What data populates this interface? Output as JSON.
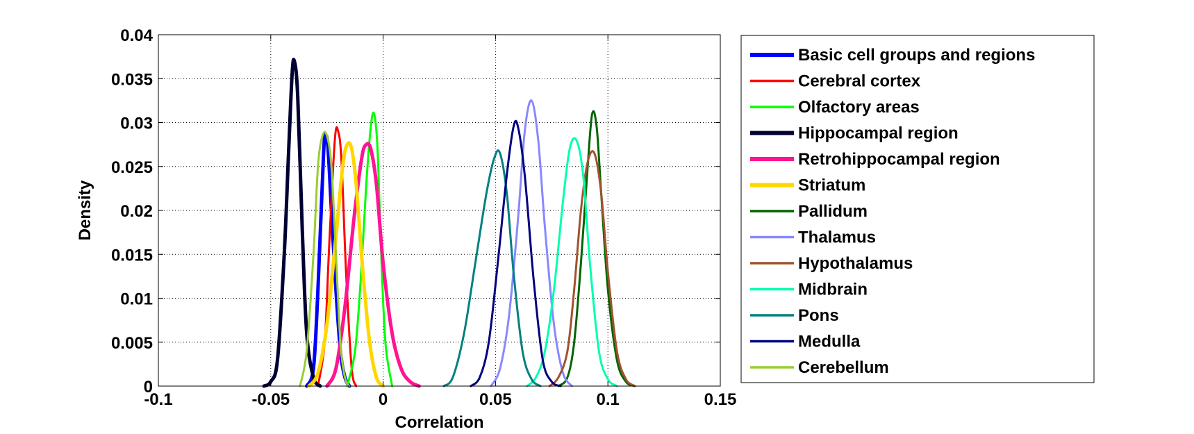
{
  "chart_data": {
    "type": "line",
    "xlabel": "Correlation",
    "ylabel": "Density",
    "xlim": [
      -0.1,
      0.15
    ],
    "ylim": [
      0,
      0.04
    ],
    "x_ticks": [
      -0.1,
      -0.05,
      0,
      0.05,
      0.1,
      0.15
    ],
    "x_tick_labels": [
      "-0.1",
      "-0.05",
      "0",
      "0.05",
      "0.1",
      "0.15"
    ],
    "y_ticks": [
      0,
      0.005,
      0.01,
      0.015,
      0.02,
      0.025,
      0.03,
      0.035,
      0.04
    ],
    "y_tick_labels": [
      "0",
      "0.005",
      "0.01",
      "0.015",
      "0.02",
      "0.025",
      "0.03",
      "0.035",
      "0.04"
    ],
    "grid": true,
    "legend_position": "outside-right",
    "series": [
      {
        "name": "Basic cell groups and regions",
        "color": "#0000FF",
        "bold": true,
        "x": [
          -0.034,
          -0.031,
          -0.029,
          -0.0265,
          -0.0255,
          -0.0245,
          -0.023,
          -0.021,
          -0.019,
          -0.017,
          -0.015
        ],
        "y": [
          0,
          0.002,
          0.011,
          0.0265,
          0.0285,
          0.027,
          0.02,
          0.011,
          0.004,
          0.001,
          0
        ]
      },
      {
        "name": "Cerebral cortex",
        "color": "#FF0000",
        "bold": false,
        "x": [
          -0.029,
          -0.026,
          -0.024,
          -0.0215,
          -0.02,
          -0.0185,
          -0.0165,
          -0.014,
          -0.012
        ],
        "y": [
          0,
          0.005,
          0.016,
          0.028,
          0.029,
          0.0255,
          0.013,
          0.002,
          0
        ]
      },
      {
        "name": "Olfactory areas",
        "color": "#00FF00",
        "bold": false,
        "x": [
          -0.016,
          -0.0125,
          -0.01,
          -0.0075,
          -0.0055,
          -0.004,
          -0.0025,
          -0.001,
          0.001,
          0.004
        ],
        "y": [
          0,
          0.004,
          0.012,
          0.023,
          0.0295,
          0.031,
          0.027,
          0.016,
          0.005,
          0
        ]
      },
      {
        "name": "Hippocampal region",
        "color": "#000033",
        "bold": true,
        "x": [
          -0.053,
          -0.05,
          -0.047,
          -0.044,
          -0.042,
          -0.0405,
          -0.0395,
          -0.038,
          -0.036,
          -0.034,
          -0.031,
          -0.028
        ],
        "y": [
          0,
          0.0005,
          0.003,
          0.015,
          0.027,
          0.0355,
          0.037,
          0.033,
          0.018,
          0.006,
          0.001,
          0
        ]
      },
      {
        "name": "Retrohippocampal region",
        "color": "#FF1493",
        "bold": true,
        "x": [
          -0.025,
          -0.021,
          -0.017,
          -0.013,
          -0.0095,
          -0.0075,
          -0.0055,
          -0.003,
          0,
          0.004,
          0.008,
          0.012,
          0.016
        ],
        "y": [
          0,
          0.002,
          0.009,
          0.019,
          0.026,
          0.0275,
          0.027,
          0.023,
          0.014,
          0.006,
          0.002,
          0.0005,
          0
        ]
      },
      {
        "name": "Striatum",
        "color": "#FFD700",
        "bold": true,
        "x": [
          -0.033,
          -0.029,
          -0.025,
          -0.021,
          -0.018,
          -0.016,
          -0.014,
          -0.012,
          -0.009,
          -0.006,
          -0.003,
          0
        ],
        "y": [
          0,
          0.0015,
          0.007,
          0.017,
          0.025,
          0.0275,
          0.027,
          0.023,
          0.013,
          0.005,
          0.001,
          0
        ]
      },
      {
        "name": "Pallidum",
        "color": "#006400",
        "bold": false,
        "x": [
          0.078,
          0.082,
          0.085,
          0.088,
          0.091,
          0.093,
          0.095,
          0.097,
          0.1,
          0.104,
          0.108,
          0.112
        ],
        "y": [
          0,
          0.001,
          0.005,
          0.014,
          0.025,
          0.031,
          0.0295,
          0.022,
          0.011,
          0.003,
          0.0005,
          0
        ]
      },
      {
        "name": "Thalamus",
        "color": "#8888FF",
        "bold": false,
        "x": [
          0.048,
          0.052,
          0.056,
          0.06,
          0.063,
          0.066,
          0.069,
          0.072,
          0.076,
          0.08,
          0.084
        ],
        "y": [
          0,
          0.002,
          0.008,
          0.019,
          0.029,
          0.0325,
          0.028,
          0.018,
          0.007,
          0.0015,
          0
        ]
      },
      {
        "name": "Hypothalamus",
        "color": "#A0522D",
        "bold": false,
        "x": [
          0.074,
          0.078,
          0.082,
          0.085,
          0.088,
          0.091,
          0.094,
          0.097,
          0.1,
          0.104,
          0.108,
          0.112
        ],
        "y": [
          0,
          0.001,
          0.004,
          0.011,
          0.02,
          0.0255,
          0.0265,
          0.022,
          0.013,
          0.004,
          0.0008,
          0
        ]
      },
      {
        "name": "Midbrain",
        "color": "#00FFB0",
        "bold": false,
        "x": [
          0.064,
          0.068,
          0.072,
          0.076,
          0.08,
          0.083,
          0.086,
          0.089,
          0.092,
          0.096,
          0.1,
          0.104
        ],
        "y": [
          0,
          0.001,
          0.004,
          0.011,
          0.021,
          0.027,
          0.028,
          0.024,
          0.014,
          0.004,
          0.0008,
          0
        ]
      },
      {
        "name": "Pons",
        "color": "#008080",
        "bold": false,
        "x": [
          0.027,
          0.031,
          0.036,
          0.041,
          0.046,
          0.0495,
          0.052,
          0.055,
          0.058,
          0.062,
          0.066,
          0.07
        ],
        "y": [
          0,
          0.001,
          0.006,
          0.014,
          0.022,
          0.026,
          0.0265,
          0.022,
          0.013,
          0.004,
          0.0008,
          0
        ]
      },
      {
        "name": "Medulla",
        "color": "#000080",
        "bold": false,
        "x": [
          0.039,
          0.043,
          0.047,
          0.051,
          0.055,
          0.058,
          0.06,
          0.063,
          0.067,
          0.071,
          0.075,
          0.079
        ],
        "y": [
          0,
          0.001,
          0.005,
          0.014,
          0.024,
          0.0295,
          0.0295,
          0.024,
          0.012,
          0.003,
          0.0005,
          0
        ]
      },
      {
        "name": "Cerebellum",
        "color": "#9ACD32",
        "bold": false,
        "x": [
          -0.037,
          -0.034,
          -0.031,
          -0.029,
          -0.027,
          -0.025,
          -0.023,
          -0.021,
          -0.019,
          -0.017,
          -0.015
        ],
        "y": [
          0,
          0.004,
          0.015,
          0.025,
          0.0285,
          0.0285,
          0.025,
          0.015,
          0.005,
          0.001,
          0
        ]
      }
    ]
  }
}
